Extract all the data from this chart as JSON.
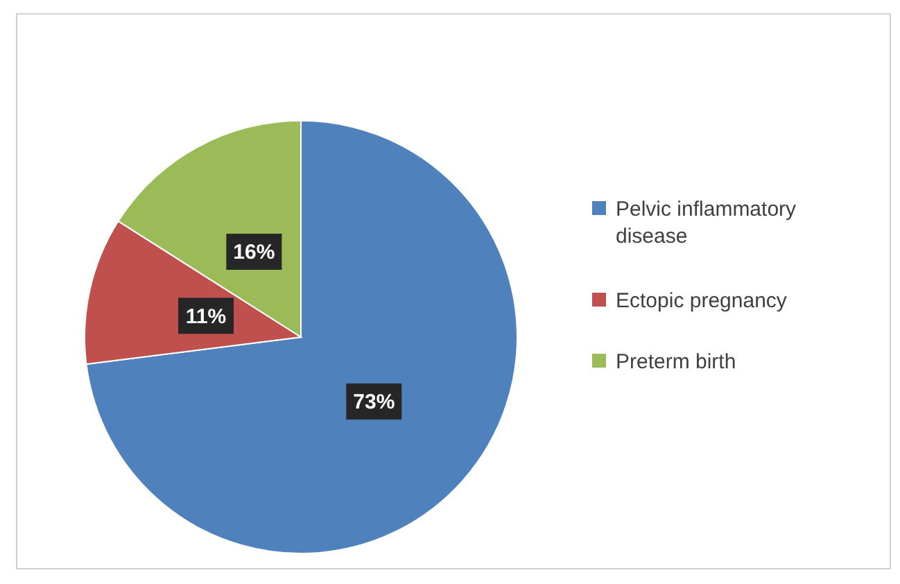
{
  "chart_data": {
    "type": "pie",
    "categories": [
      "Pelvic inflammatory disease",
      "Ectopic pregnancy",
      "Preterm birth"
    ],
    "values": [
      73,
      11,
      16
    ],
    "colors": [
      "#4f81bd",
      "#c0504d",
      "#9bbb59"
    ],
    "value_labels": [
      "73%",
      "11%",
      "16%"
    ],
    "legend": "right"
  }
}
